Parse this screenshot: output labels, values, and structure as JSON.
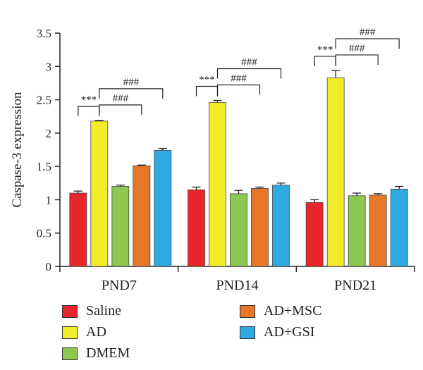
{
  "chart_data": {
    "type": "bar",
    "ylabel": "Caspase-3 expression",
    "xlabel": "",
    "ylim": [
      0,
      3.5
    ],
    "yticks": [
      "0",
      "0.5",
      "1",
      "1.5",
      "2",
      "2.5",
      "3",
      "3.5"
    ],
    "categories": [
      "PND7",
      "PND14",
      "PND21"
    ],
    "series": [
      {
        "name": "Saline",
        "color": "#e8262b",
        "values": [
          1.1,
          1.15,
          0.96
        ],
        "errors": [
          0.03,
          0.04,
          0.04
        ]
      },
      {
        "name": "AD",
        "color": "#f2ec2a",
        "values": [
          2.18,
          2.46,
          2.83
        ],
        "errors": [
          0.01,
          0.03,
          0.11
        ]
      },
      {
        "name": "DMEM",
        "color": "#8cc74f",
        "values": [
          1.2,
          1.09,
          1.06
        ],
        "errors": [
          0.02,
          0.05,
          0.04
        ]
      },
      {
        "name": "AD+MSC",
        "color": "#e67628",
        "values": [
          1.51,
          1.17,
          1.07
        ],
        "errors": [
          0.01,
          0.02,
          0.02
        ]
      },
      {
        "name": "AD+GSI",
        "color": "#2ea9e1",
        "values": [
          1.74,
          1.22,
          1.16
        ],
        "errors": [
          0.03,
          0.03,
          0.04
        ]
      }
    ],
    "significance": [
      {
        "category": 0,
        "from": 0,
        "to": 1,
        "label": "***"
      },
      {
        "category": 0,
        "from": 1,
        "to": 3,
        "label": "###"
      },
      {
        "category": 0,
        "from": 1,
        "to": 4,
        "label": "###"
      },
      {
        "category": 1,
        "from": 0,
        "to": 1,
        "label": "***"
      },
      {
        "category": 1,
        "from": 1,
        "to": 3,
        "label": "###"
      },
      {
        "category": 1,
        "from": 1,
        "to": 4,
        "label": "###"
      },
      {
        "category": 2,
        "from": 0,
        "to": 1,
        "label": "***"
      },
      {
        "category": 2,
        "from": 1,
        "to": 3,
        "label": "###"
      },
      {
        "category": 2,
        "from": 1,
        "to": 4,
        "label": "###"
      }
    ],
    "legend": [
      "Saline",
      "AD",
      "DMEM",
      "AD+MSC",
      "AD+GSI"
    ],
    "grid": false
  }
}
